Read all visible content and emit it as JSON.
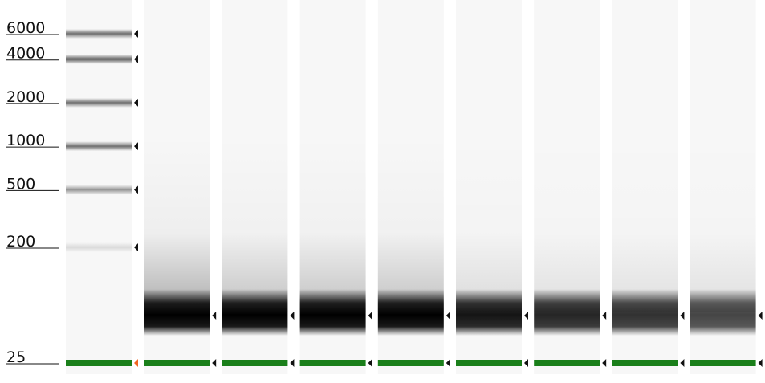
{
  "chart_data": {
    "type": "gel",
    "ladder_sizes_bp": [
      6000,
      4000,
      2000,
      1000,
      500,
      200,
      25
    ],
    "size_labels": [
      "6000",
      "4000",
      "2000",
      "1000",
      "500",
      "200",
      "25"
    ],
    "lanes": [
      {
        "kind": "ladder",
        "bands": [
          {
            "size": 6000,
            "intensity": 0.55
          },
          {
            "size": 4000,
            "intensity": 0.62
          },
          {
            "size": 2000,
            "intensity": 0.55
          },
          {
            "size": 1000,
            "intensity": 0.55
          },
          {
            "size": 500,
            "intensity": 0.4
          },
          {
            "size": 200,
            "intensity": 0.12
          }
        ],
        "marker": true,
        "marker_color": "#f26522"
      },
      {
        "kind": "sample",
        "peak_intensity": 1.0,
        "smear": 0.3,
        "marker": true,
        "marker_color": "#111111"
      },
      {
        "kind": "sample",
        "peak_intensity": 1.0,
        "smear": 0.22,
        "marker": true,
        "marker_color": "#111111"
      },
      {
        "kind": "sample",
        "peak_intensity": 1.0,
        "smear": 0.22,
        "marker": true,
        "marker_color": "#111111"
      },
      {
        "kind": "sample",
        "peak_intensity": 1.0,
        "smear": 0.22,
        "marker": true,
        "marker_color": "#111111"
      },
      {
        "kind": "sample",
        "peak_intensity": 0.92,
        "smear": 0.12,
        "marker": true,
        "marker_color": "#111111"
      },
      {
        "kind": "sample",
        "peak_intensity": 0.85,
        "smear": 0.1,
        "marker": true,
        "marker_color": "#111111"
      },
      {
        "kind": "sample",
        "peak_intensity": 0.8,
        "smear": 0.1,
        "marker": true,
        "marker_color": "#111111"
      },
      {
        "kind": "sample",
        "peak_intensity": 0.72,
        "smear": 0.1,
        "marker": true,
        "marker_color": "#111111"
      }
    ],
    "lower_marker_color": "#1a7f1a",
    "background_color": "#f7f7f7",
    "band_color": "#000000"
  }
}
